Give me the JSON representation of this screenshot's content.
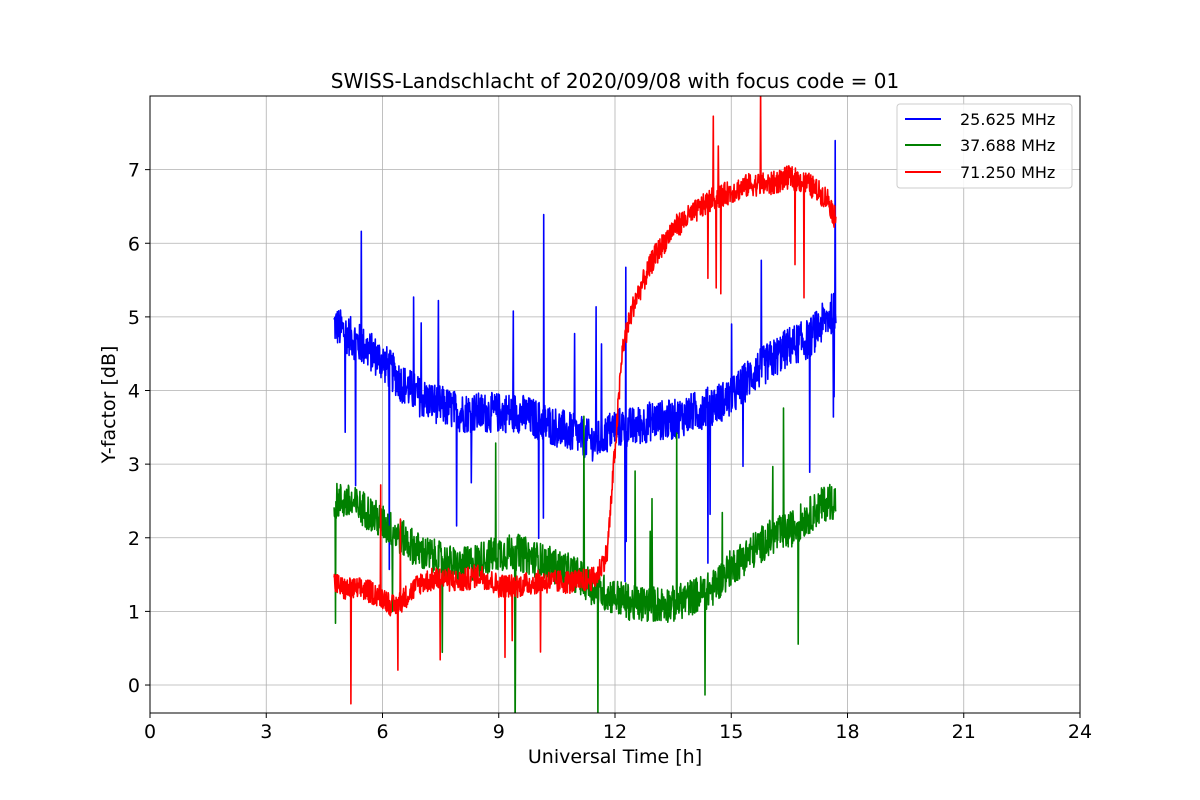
{
  "chart_data": {
    "type": "line",
    "title": "SWISS-Landschlacht of 2020/09/08 with focus code = 01",
    "xlabel": "Universal Time [h]",
    "ylabel": "Y-factor [dB]",
    "xlim": [
      0,
      24
    ],
    "ylim": [
      -0.38,
      8.0
    ],
    "xticks": [
      "0",
      "3",
      "6",
      "9",
      "12",
      "15",
      "18",
      "21",
      "24"
    ],
    "yticks": [
      "0",
      "1",
      "2",
      "3",
      "4",
      "5",
      "6",
      "7"
    ],
    "grid": true,
    "legend_position": "top-right",
    "series": [
      {
        "name": "25.625 MHz",
        "color": "#0000ff",
        "noise": 0.55,
        "x": [
          4.75,
          5.0,
          5.5,
          6.0,
          6.5,
          7.0,
          7.5,
          8.0,
          8.5,
          9.0,
          9.5,
          10.0,
          10.5,
          11.0,
          11.5,
          12.0,
          12.5,
          13.0,
          13.5,
          14.0,
          14.5,
          15.0,
          15.5,
          16.0,
          16.5,
          17.0,
          17.5,
          17.7
        ],
        "y": [
          4.9,
          4.8,
          4.6,
          4.4,
          4.1,
          3.9,
          3.8,
          3.7,
          3.7,
          3.7,
          3.7,
          3.6,
          3.5,
          3.4,
          3.3,
          3.5,
          3.5,
          3.6,
          3.6,
          3.7,
          3.8,
          3.9,
          4.2,
          4.4,
          4.6,
          4.7,
          5.0,
          5.1
        ]
      },
      {
        "name": "37.688 MHz",
        "color": "#008000",
        "noise": 0.5,
        "x": [
          4.75,
          5.0,
          5.5,
          6.0,
          6.5,
          7.0,
          7.5,
          8.0,
          8.5,
          9.0,
          9.5,
          10.0,
          10.5,
          11.0,
          11.5,
          12.0,
          12.5,
          13.0,
          13.5,
          14.0,
          14.5,
          15.0,
          15.5,
          16.0,
          16.5,
          17.0,
          17.5,
          17.7
        ],
        "y": [
          2.5,
          2.5,
          2.4,
          2.2,
          2.0,
          1.8,
          1.7,
          1.6,
          1.7,
          1.8,
          1.8,
          1.7,
          1.6,
          1.5,
          1.3,
          1.2,
          1.1,
          1.1,
          1.1,
          1.2,
          1.3,
          1.6,
          1.8,
          2.0,
          2.1,
          2.3,
          2.5,
          2.5
        ]
      },
      {
        "name": "71.250 MHz",
        "color": "#ff0000",
        "noise": 0.32,
        "x": [
          4.75,
          5.0,
          5.5,
          6.0,
          6.3,
          6.6,
          7.0,
          7.5,
          8.0,
          8.5,
          9.0,
          9.5,
          10.0,
          10.5,
          11.0,
          11.5,
          11.8,
          12.0,
          12.2,
          12.5,
          13.0,
          13.5,
          14.0,
          14.5,
          15.0,
          15.5,
          16.0,
          16.5,
          17.0,
          17.5,
          17.7
        ],
        "y": [
          1.4,
          1.3,
          1.3,
          1.2,
          1.05,
          1.2,
          1.4,
          1.45,
          1.4,
          1.5,
          1.35,
          1.35,
          1.4,
          1.4,
          1.4,
          1.45,
          1.8,
          3.2,
          4.6,
          5.2,
          5.8,
          6.2,
          6.4,
          6.6,
          6.7,
          6.8,
          6.8,
          6.9,
          6.8,
          6.6,
          6.3
        ]
      }
    ]
  }
}
